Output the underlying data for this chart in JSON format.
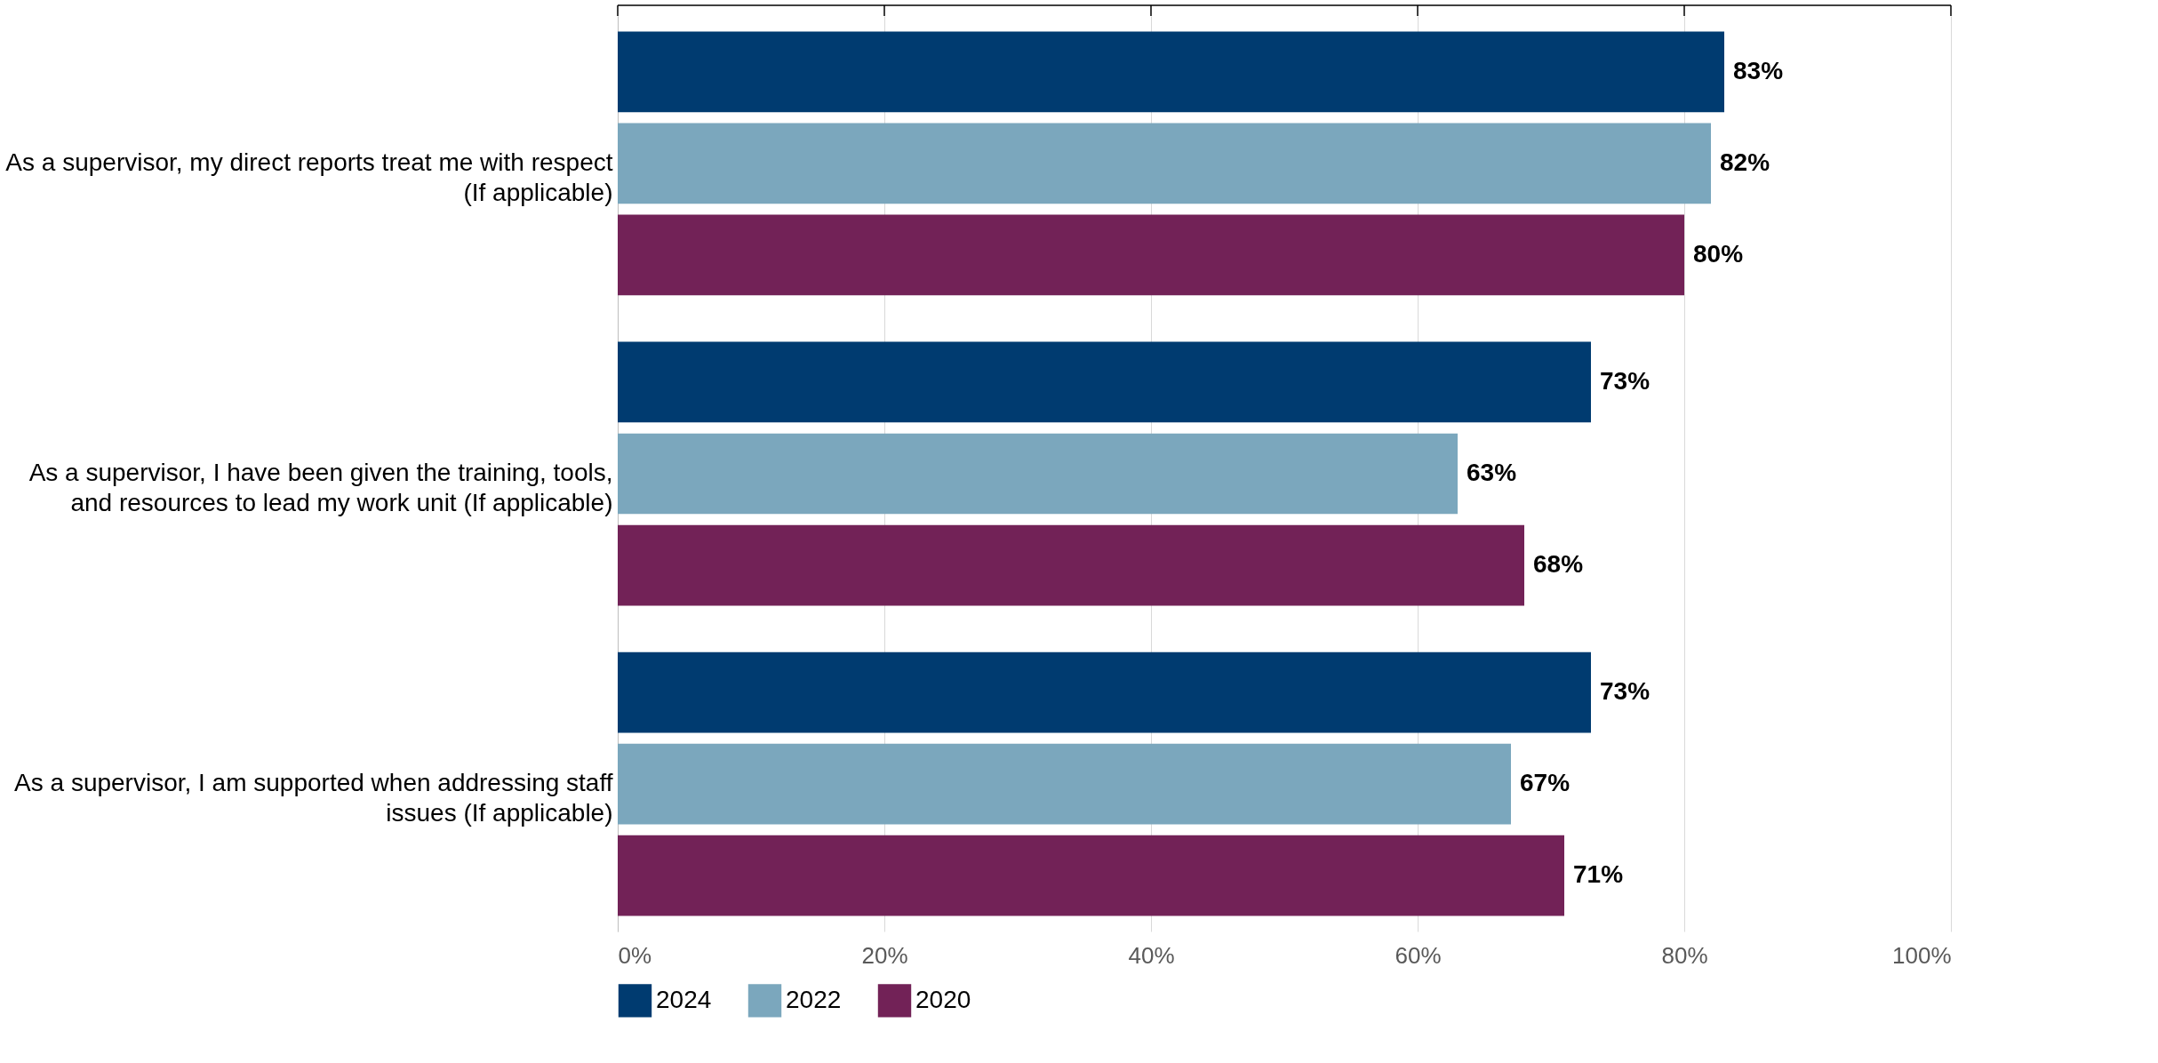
{
  "chart_data": {
    "type": "bar",
    "orientation": "horizontal",
    "categories": [
      "As a supervisor, my direct reports treat me with respect (If applicable)",
      "As a supervisor, I have been given the training, tools, and resources to lead my work unit (If applicable)",
      "As a supervisor, I am supported when addressing staff issues (If applicable)"
    ],
    "series": [
      {
        "name": "2024",
        "color": "#003b70",
        "values": [
          83,
          73,
          73
        ],
        "value_labels": [
          "83%",
          "73%",
          "73%"
        ]
      },
      {
        "name": "2022",
        "color": "#7ba7bd",
        "values": [
          82,
          63,
          67
        ],
        "value_labels": [
          "82%",
          "63%",
          "67%"
        ]
      },
      {
        "name": "2020",
        "color": "#722257",
        "values": [
          80,
          68,
          71
        ],
        "value_labels": [
          "80%",
          "68%",
          "71%"
        ]
      }
    ],
    "xlim": [
      0,
      100
    ],
    "xticks": [
      {
        "value": 0,
        "label": "0%"
      },
      {
        "value": 20,
        "label": "20%"
      },
      {
        "value": 40,
        "label": "40%"
      },
      {
        "value": 60,
        "label": "60%"
      },
      {
        "value": 80,
        "label": "80%"
      },
      {
        "value": 100,
        "label": "100%"
      }
    ],
    "grid": "x",
    "legend": "bottom"
  }
}
